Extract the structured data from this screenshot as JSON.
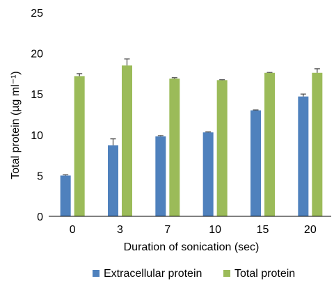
{
  "chart_data": {
    "type": "bar",
    "categories": [
      "0",
      "3",
      "7",
      "10",
      "15",
      "20"
    ],
    "xlabel": "Duration of sonication (sec)",
    "ylabel": "Total protein (µg ml⁻¹)",
    "ylim": [
      0,
      25
    ],
    "yticks": [
      "0",
      "5",
      "10",
      "15",
      "20",
      "25"
    ],
    "grid": false,
    "legend_position": "bottom",
    "series": [
      {
        "name": "Extracellular protein",
        "color": "#4f81bd",
        "values": [
          5.0,
          8.7,
          9.8,
          10.3,
          13.0,
          14.7
        ],
        "errors": [
          0.1,
          0.8,
          0.1,
          0.05,
          0.05,
          0.3
        ]
      },
      {
        "name": "Total protein",
        "color": "#9bbb59",
        "values": [
          17.2,
          18.5,
          16.9,
          16.7,
          17.6,
          17.6
        ],
        "errors": [
          0.3,
          0.8,
          0.1,
          0.05,
          0.05,
          0.5
        ]
      }
    ]
  }
}
